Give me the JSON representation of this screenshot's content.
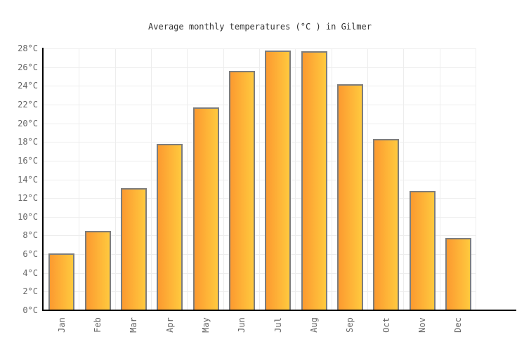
{
  "chart_data": {
    "type": "bar",
    "title": "Average monthly temperatures (°C ) in Gilmer",
    "categories": [
      "Jan",
      "Feb",
      "Mar",
      "Apr",
      "May",
      "Jun",
      "Jul",
      "Aug",
      "Sep",
      "Oct",
      "Nov",
      "Dec"
    ],
    "values": [
      6.1,
      8.5,
      13.1,
      17.8,
      21.7,
      25.6,
      27.8,
      27.7,
      24.2,
      18.3,
      12.8,
      7.7
    ],
    "unit": "°C",
    "xlabel": "",
    "ylabel": "",
    "ylim": [
      0,
      28
    ],
    "ytick_step": 2,
    "grid": true,
    "legend_position": "none",
    "x_labels_rotation_degrees": -90
  },
  "colors": {
    "background": "#FFFFFF",
    "bar_gradient_left": "#FC9A30",
    "bar_gradient_right": "#FFC93E",
    "bar_border": "#7D7D7D",
    "axis": "#000000",
    "gridline": "#EDEDED",
    "tick_label": "#666666",
    "title_text": "#333333"
  }
}
